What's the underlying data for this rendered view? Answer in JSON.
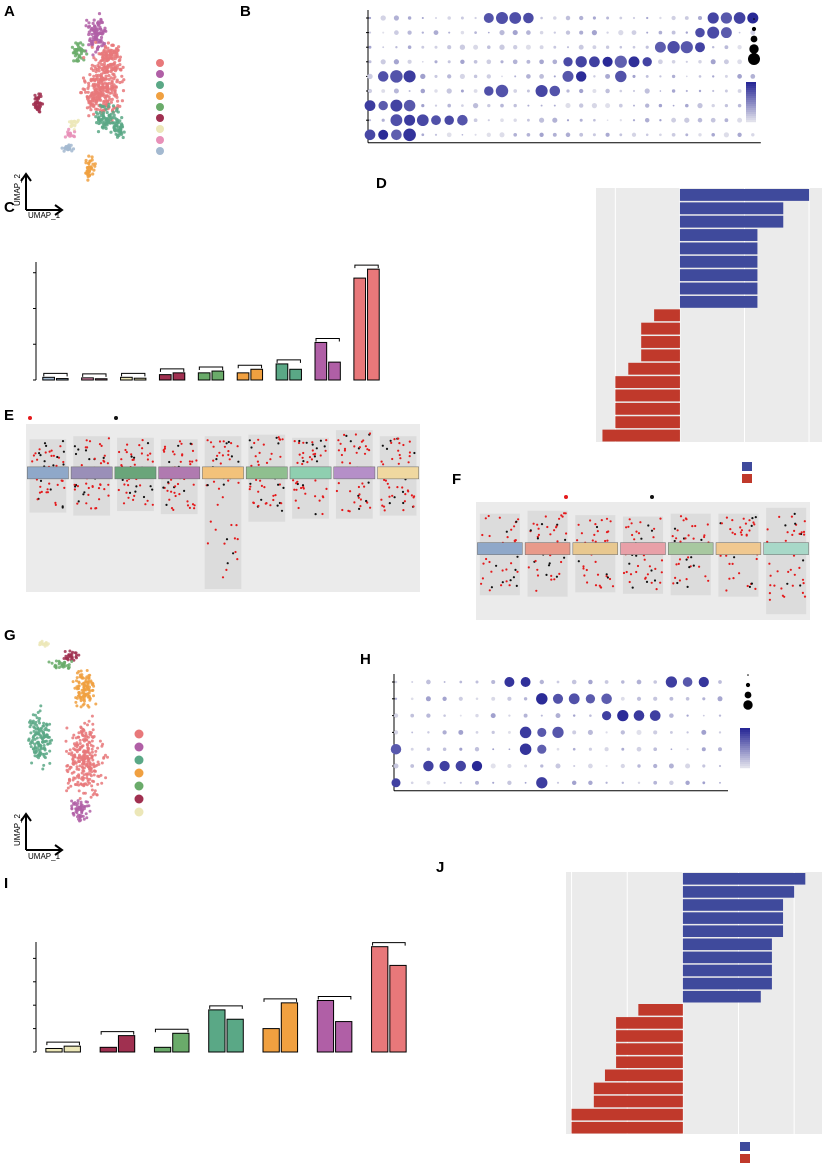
{
  "panel_letters": {
    "A": "A",
    "B": "B",
    "C": "C",
    "D": "D",
    "E": "E",
    "F": "F",
    "G": "G",
    "H": "H",
    "I": "I",
    "J": "J"
  },
  "umap": {
    "xlabel": "UMAP_1",
    "ylabel": "UMAP_2"
  },
  "panelA": {
    "legend": [
      "Follicular BC",
      "MZ BC",
      "Transitional BC",
      "Activated Cd8+ TC",
      "Plasmablast",
      "Plasma",
      "Pro–B cell",
      "Pre–B cycling",
      "Cd4+ NKT cycling"
    ],
    "colors": [
      "#e8787a",
      "#b05fa6",
      "#5aa886",
      "#f0a040",
      "#6aab6a",
      "#a03050",
      "#ece7b8",
      "#e890b8",
      "#a3b9d0"
    ],
    "labels": [
      "MZ BC",
      "Plasmablast",
      "Follicular BC",
      "Pro–B cell",
      "Plasma",
      "Transitional BC",
      "Pre–B cycling",
      "Cd4+ NKT cycling",
      "Activated Cd8+ TC"
    ]
  },
  "panelB": {
    "rows": [
      "Cd4+ NKT cycling",
      "Pre–B cycling",
      "Pro–B cell",
      "Plasma",
      "Plasmablast",
      "Activated Cd8+ TC",
      "Transitional BC",
      "MZ BC",
      "Follicular BC"
    ],
    "genes": [
      "Ighd",
      "Ccr7",
      "Cd79a",
      "Ms4a1",
      "Cr2",
      "Plac8",
      "Bcl2a1b",
      "Myc",
      "Dock2",
      "Lat",
      "Trbc2",
      "Ms4a4b",
      "Ifng",
      "Ccl5",
      "Cd8b1",
      "Iglc1",
      "Iglc2",
      "Prdm1",
      "Jchain",
      "Igkc",
      "Mzb1",
      "Ighm",
      "Sox4",
      "Vpreb3",
      "Il7r",
      "Rag1",
      "Top2a",
      "Mki67",
      "Trbc1",
      "Cd4"
    ],
    "size_title": "Percent Expressed",
    "size_ticks": [
      "0",
      "25",
      "50",
      "75",
      "100"
    ],
    "color_title": "Average Expression",
    "color_ticks": [
      "2",
      "1",
      "0",
      "−1"
    ]
  },
  "panelC": {
    "ylabel": "The percentage of celltypes",
    "categories": [
      "Cd4+ NKT cycling",
      "Pre–B cycling",
      "Pro–B cell",
      "Plasma",
      "Plasmablast",
      "Activated Cd8+ TC",
      "Transitional BC",
      "MZ BC",
      "Follicular BC"
    ],
    "colors": [
      "#a3b9d0",
      "#e890b8",
      "#ece7b8",
      "#a03050",
      "#6aab6a",
      "#f0a040",
      "#5aa886",
      "#b05fa6",
      "#e8787a"
    ],
    "sig": [
      "*",
      "*",
      "*",
      "*",
      "*",
      "*",
      "*",
      "**",
      "**"
    ],
    "yticks": [
      "0",
      "20",
      "40",
      "60"
    ],
    "group_labels": [
      "GF",
      "SPF"
    ]
  },
  "panelD": {
    "terms": [
      "B cell activation",
      "mononuclear cell proliferation",
      "lymphocyte proliferation",
      "antigen processing and presentation of peptide or polysaccharide antigen via MHC II",
      "antigen processing and presentation of peptide antigen via MHC class II",
      "antigen processing and presentation of exogenous peptide antigen via MHC class II",
      "antigen processing and presentation of exogenous peptide antigen",
      "antigen processing and presentation of exogenous antigen",
      "antigen processing and presentation",
      "pre–B cell differentiation",
      "ventral spinal cord development",
      "V(D)J recombination",
      "thymus development",
      "positive regulation of lymphocyte differentiation",
      "regulation of leukocyte differentiation",
      "positive regulation of leukocyte differentiation",
      "positive regulation of hemopoiesis",
      "homeostasis of number of cells",
      "mononuclear cell differentiation"
    ],
    "xticks": [
      "−5",
      "0",
      "5",
      "10"
    ],
    "xlabel_left": "Pro-B cell",
    "xlabel_right": "Gene Number",
    "legend": [
      "GF up–regulated",
      "SPF up–regulated"
    ]
  },
  "panelE": {
    "legend": [
      "adjust P–val<0.01",
      "adjust P–val>=0.01"
    ],
    "ylabel": "average logFC",
    "yticks": [
      "2.5",
      "0.0",
      "−2.5",
      "−5.0",
      "−7.5"
    ],
    "clusters": [
      "Activated Cd8+ TC",
      "Cd4+ NKT cycling",
      "Follicular BC",
      "MZ BC",
      "Plasma",
      "Plasmablast",
      "Pre–B cycling",
      "Pro–B cell",
      "Transitional BC"
    ],
    "box_labels": [
      "1",
      "2",
      "3",
      "4",
      "5",
      "6",
      "7",
      "8",
      "9"
    ],
    "genes": [
      "Cxcl22",
      "Hspe1",
      "Chordc1",
      "Gm26870",
      "Rpl29",
      "Hspd1",
      "Plaur",
      "Cr2",
      "Cxcl22",
      "Serpine3",
      "Hvcn1",
      "Iglc1",
      "Cr2",
      "Hspe1",
      "H2–Ab1",
      "H2–Aa",
      "Bhlhe40",
      "Cd74",
      "H2–Eb1",
      "Igkc",
      "Hspa1a",
      "Hspa1b",
      "H2–Q7",
      "H2–Q6",
      "Ighg2c",
      "Ighg2b",
      "Hba–a1",
      "Sox4",
      "Smarca4",
      "Camk2b",
      "Jchain",
      "Igha",
      "Slpi",
      "Mzb1",
      "Crip1",
      "Ccl5",
      "Gm42674",
      "Hbb–bs",
      "Egr1",
      "Dnaja1",
      "Fos",
      "Jun",
      "Dusp1",
      "Cd83",
      "Iglv1",
      "Pafah1b3"
    ]
  },
  "panelF": {
    "legend": [
      "adjust P–val<0.01",
      "adjust P–val>=0.01"
    ],
    "ylabel": "average logFC",
    "yticks": [
      "2",
      "0",
      "−2",
      "−4"
    ],
    "clusters": [
      "Cd8+ NKT",
      "Effector memory Cd4+ TC",
      "Effector memory Treg",
      "iTreg",
      "Naive Cd4+ TC",
      "Naive memory Cd4+ TC",
      "Th17"
    ],
    "box_labels": [
      "1",
      "2",
      "3",
      "4",
      "5",
      "6",
      "7"
    ],
    "genes": [
      "Gm26870",
      "Gzma",
      "Hspa1b",
      "Cxcl22",
      "Ly6a",
      "Anxa5",
      "Gm26870",
      "Rpl29",
      "Ccl5",
      "Hspa1a",
      "Hspa1b",
      "Gdpd3",
      "H2–Q7",
      "H2–Q6",
      "Jun",
      "Fos",
      "Egr1",
      "Hba–a1",
      "Isg15",
      "Ifit3",
      "Cd69",
      "Tnf",
      "Hsad2",
      "Serpina3f",
      "Gzmk",
      "Lgals1",
      "Klf2",
      "Sell",
      "Il7r",
      "Ccr7",
      "Dusp1",
      "Nr4a1",
      "Hsp90aa1",
      "Hspa8"
    ]
  },
  "panelG": {
    "legend": [
      "Naive Cd4+ TC",
      "Cd8+ NKT",
      "Naive memory Cd4+ TC",
      "iTreg",
      "Effector memory Cd4+ TC",
      "Effector memory Treg",
      "Th17"
    ],
    "colors": [
      "#e8787a",
      "#b05fa6",
      "#5aa886",
      "#f0a040",
      "#6aab6a",
      "#a03050",
      "#ece7b8"
    ],
    "labels": [
      "Th17",
      "Effector memory Treg",
      "Effector memory Cd4+ TC",
      "iTreg",
      "Naive memory Cd4+ TC",
      "Naive Cd4+ TC",
      "Cd8+ NKT"
    ]
  },
  "panelH": {
    "rows": [
      "Th17",
      "Effector memory Treg",
      "Effector memory Cd4+ TC",
      "iTreg",
      "Naive memory Cd4+ TC",
      "Cd8+ NKT",
      "Naive Cd4+ TC"
    ],
    "genes": [
      "Cd4",
      "Igfbp4",
      "Cd8a",
      "Cd8b1",
      "Nkg7",
      "Klrd1",
      "Cxcr6",
      "Klf6",
      "Jun",
      "Ccr7",
      "Ctla4",
      "Ikzf2",
      "Tnfrsf4",
      "Il2ra",
      "Lgals1",
      "Bcl2a1b",
      "Ifng",
      "Ccr6",
      "Il23r",
      "Rora",
      "Il22"
    ],
    "size_title": "Percent Expressed",
    "size_ticks": [
      "0",
      "25",
      "50",
      "75"
    ],
    "color_title": "Average Expression",
    "color_ticks": [
      "2",
      "1",
      "0",
      "−1"
    ]
  },
  "panelI": {
    "ylabel": "The percentage of celltypes",
    "categories": [
      "Th17",
      "Effector memory Treg",
      "Effector memory Cd4+ TC",
      "Naive memory Cd4+ TC",
      "iTreg",
      "Cd8+ NKT",
      "Naive Cd4+ TC"
    ],
    "colors": [
      "#ece7b8",
      "#a03050",
      "#6aab6a",
      "#5aa886",
      "#f0a040",
      "#b05fa6",
      "#e8787a"
    ],
    "sig": [
      "*",
      "**",
      "**",
      "**",
      "**",
      "**",
      "**"
    ],
    "yticks": [
      "0",
      "10",
      "20",
      "30",
      "40"
    ],
    "group_labels": [
      "GF",
      "SPF"
    ]
  },
  "panelJ": {
    "terms": [
      "regulation of T cell activation",
      "leukocyte cell–cell adhesion",
      "T cell differentiation",
      "mononuclear cell proliferation",
      "lymphocyte proliferation",
      "T cell proliferation",
      "regulation of mononuclear cell proliferation",
      "regulation of lymphocyte proliferation",
      "regulation of leukocyte proliferation",
      "regulation of T cell proliferation",
      "protein refolding",
      "chaperone–mediated protein folding",
      "chaperone cofactor–dependent protein refolding",
      "'de novo' protein folding",
      "'de novo' posttranslational protein folding",
      "response to unfolded protein",
      "response to topologically incorrect protein",
      "protein folding",
      "defense response to virus",
      "defense response to symbiont"
    ],
    "xticks": [
      "−10",
      "−5",
      "0",
      "5",
      "10"
    ],
    "xlabel_left": "iTreg",
    "xlabel_right": "Gene Number",
    "legend": [
      "GF up–regulated",
      "SPF up–regulated"
    ]
  },
  "chart_data": [
    {
      "panel": "B",
      "type": "heatmap",
      "kind": "dotplot",
      "rows": [
        "Cd4+ NKT cycling",
        "Pre–B cycling",
        "Pro–B cell",
        "Plasma",
        "Plasmablast",
        "Activated Cd8+ TC",
        "Transitional BC",
        "MZ BC",
        "Follicular BC"
      ],
      "columns": [
        "Ighd",
        "Ccr7",
        "Cd79a",
        "Ms4a1",
        "Cr2",
        "Plac8",
        "Bcl2a1b",
        "Myc",
        "Dock2",
        "Lat",
        "Trbc2",
        "Ms4a4b",
        "Ifng",
        "Ccl5",
        "Cd8b1",
        "Iglc1",
        "Iglc2",
        "Prdm1",
        "Jchain",
        "Igkc",
        "Mzb1",
        "Ighm",
        "Sox4",
        "Vpreb3",
        "Il7r",
        "Rag1",
        "Top2a",
        "Mki67",
        "Trbc1",
        "Cd4"
      ]
    },
    {
      "panel": "C",
      "type": "bar",
      "categories": [
        "Cd4+ NKT cycling",
        "Pre–B cycling",
        "Pro–B cell",
        "Plasma",
        "Plasmablast",
        "Activated Cd8+ TC",
        "Transitional BC",
        "MZ BC",
        "Follicular BC"
      ],
      "series": [
        {
          "name": "GF",
          "values": [
            1.5,
            1.2,
            1.5,
            3,
            4,
            4,
            9,
            21,
            57
          ]
        },
        {
          "name": "SPF",
          "values": [
            0.8,
            0.7,
            1.0,
            4,
            5,
            6,
            6,
            10,
            62
          ]
        }
      ],
      "ylabel": "The percentage of celltypes",
      "ylim": [
        0,
        66
      ]
    },
    {
      "panel": "D",
      "type": "bar",
      "orientation": "horizontal",
      "categories": [
        "B cell activation",
        "mononuclear cell proliferation",
        "lymphocyte proliferation",
        "antigen processing and presentation of peptide or polysaccharide antigen via MHC II",
        "antigen processing and presentation of peptide antigen via MHC class II",
        "antigen processing and presentation of exogenous peptide antigen via MHC class II",
        "antigen processing and presentation of exogenous peptide antigen",
        "antigen processing and presentation of exogenous antigen",
        "antigen processing and presentation",
        "pre–B cell differentiation",
        "ventral spinal cord development",
        "V(D)J recombination",
        "thymus development",
        "positive regulation of lymphocyte differentiation",
        "regulation of leukocyte differentiation",
        "positive regulation of leukocyte differentiation",
        "positive regulation of hemopoiesis",
        "homeostasis of number of cells",
        "mononuclear cell differentiation"
      ],
      "values": [
        10,
        8,
        8,
        6,
        6,
        6,
        6,
        6,
        6,
        -2,
        -3,
        -3,
        -3,
        -4,
        -5,
        -5,
        -5,
        -5,
        -6
      ],
      "xlim": [
        -6.5,
        11
      ]
    },
    {
      "panel": "I",
      "type": "bar",
      "categories": [
        "Th17",
        "Effector memory Treg",
        "Effector memory Cd4+ TC",
        "Naive memory Cd4+ TC",
        "iTreg",
        "Cd8+ NKT",
        "Naive Cd4+ TC"
      ],
      "series": [
        {
          "name": "GF",
          "values": [
            1.5,
            2,
            2,
            18,
            10,
            22,
            45
          ]
        },
        {
          "name": "SPF",
          "values": [
            2.5,
            7,
            8,
            14,
            21,
            13,
            37
          ]
        }
      ],
      "ylabel": "The percentage of celltypes",
      "ylim": [
        0,
        47
      ]
    },
    {
      "panel": "J",
      "type": "bar",
      "orientation": "horizontal",
      "categories": [
        "regulation of T cell activation",
        "leukocyte cell–cell adhesion",
        "T cell differentiation",
        "mononuclear cell proliferation",
        "lymphocyte proliferation",
        "T cell proliferation",
        "regulation of mononuclear cell proliferation",
        "regulation of lymphocyte proliferation",
        "regulation of leukocyte proliferation",
        "regulation of T cell proliferation",
        "protein refolding",
        "chaperone–mediated protein folding",
        "chaperone cofactor–dependent protein refolding",
        "'de novo' protein folding",
        "'de novo' posttranslational protein folding",
        "response to unfolded protein",
        "response to topologically incorrect protein",
        "protein folding",
        "defense response to virus",
        "defense response to symbiont"
      ],
      "values": [
        11,
        10,
        9,
        9,
        9,
        8,
        8,
        8,
        8,
        7,
        -4,
        -6,
        -6,
        -6,
        -6,
        -7,
        -8,
        -8,
        -10,
        -10
      ],
      "xlim": [
        -10.5,
        12.5
      ]
    }
  ]
}
